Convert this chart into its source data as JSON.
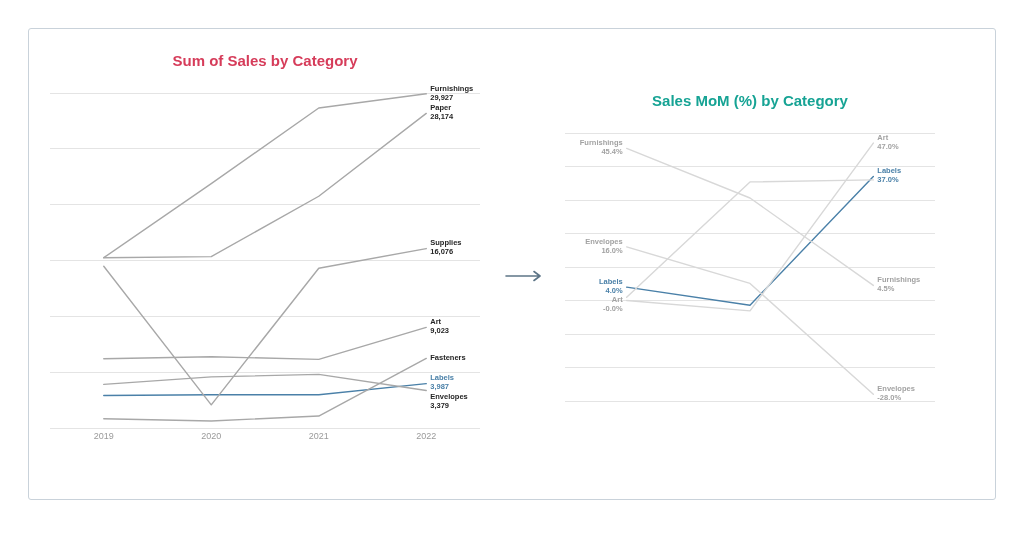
{
  "chart_data": [
    {
      "type": "line",
      "title": "Sum of Sales by Category",
      "categories": [
        "2019",
        "2020",
        "2021",
        "2022"
      ],
      "grid": "y",
      "tick_labels": "x",
      "series": [
        {
          "name": "Furnishings",
          "color": "#a8a8a8",
          "values": [
            15260,
            21890,
            28660,
            29927
          ],
          "value_labels": [
            null,
            null,
            null,
            "29,927"
          ]
        },
        {
          "name": "Paper",
          "color": "#a8a8a8",
          "values": [
            15260,
            15360,
            20760,
            28174
          ],
          "value_labels": [
            null,
            null,
            null,
            "28,174"
          ]
        },
        {
          "name": "Supplies",
          "color": "#a8a8a8",
          "values": [
            14490,
            2090,
            14320,
            16076
          ],
          "value_labels": [
            null,
            null,
            null,
            "16,076"
          ]
        },
        {
          "name": "Art",
          "color": "#a8a8a8",
          "values": [
            6220,
            6390,
            6160,
            9023
          ],
          "value_labels": [
            null,
            null,
            null,
            "9,023"
          ]
        },
        {
          "name": "Fasteners",
          "color": "#a8a8a8",
          "values": [
            850,
            650,
            1090,
            6250
          ]
        },
        {
          "name": "Envelopes",
          "color": "#a8a8a8",
          "values": [
            3920,
            4590,
            4820,
            3379
          ],
          "value_labels": [
            null,
            null,
            null,
            "3,379"
          ]
        },
        {
          "name": "Labels",
          "color": "#4a80a8",
          "values": [
            2920,
            2990,
            2990,
            3987
          ],
          "value_labels": [
            null,
            null,
            null,
            "3,987"
          ]
        }
      ]
    },
    {
      "type": "line",
      "title": "Sales MoM (%) by Category",
      "categories": [
        null,
        null,
        null
      ],
      "grid": "y",
      "tick_labels": false,
      "series": [
        {
          "name": "Furnishings",
          "color": "#d8d8d8",
          "values": [
            45.4,
            30.6,
            4.5
          ],
          "value_labels": [
            "45.4%",
            null,
            "4.5%"
          ]
        },
        {
          "name": "Envelopes",
          "color": "#d8d8d8",
          "values": [
            16.0,
            5.1,
            -28.0
          ],
          "value_labels": [
            "16.0%",
            null,
            "-28.0%"
          ]
        },
        {
          "name": "Art",
          "color": "#d8d8d8",
          "values": [
            0,
            -3.1,
            47.0
          ],
          "value_labels": [
            "-0.0%",
            null,
            "47.0%"
          ]
        },
        {
          "color": "#d8d8d8",
          "values": [
            1.0,
            35.4,
            36.0
          ]
        },
        {
          "name": "Labels",
          "color": "#4a80a8",
          "values": [
            4.0,
            -1.4,
            37.0
          ],
          "value_labels": [
            "4.0%",
            null,
            "37.0%"
          ]
        }
      ]
    }
  ]
}
